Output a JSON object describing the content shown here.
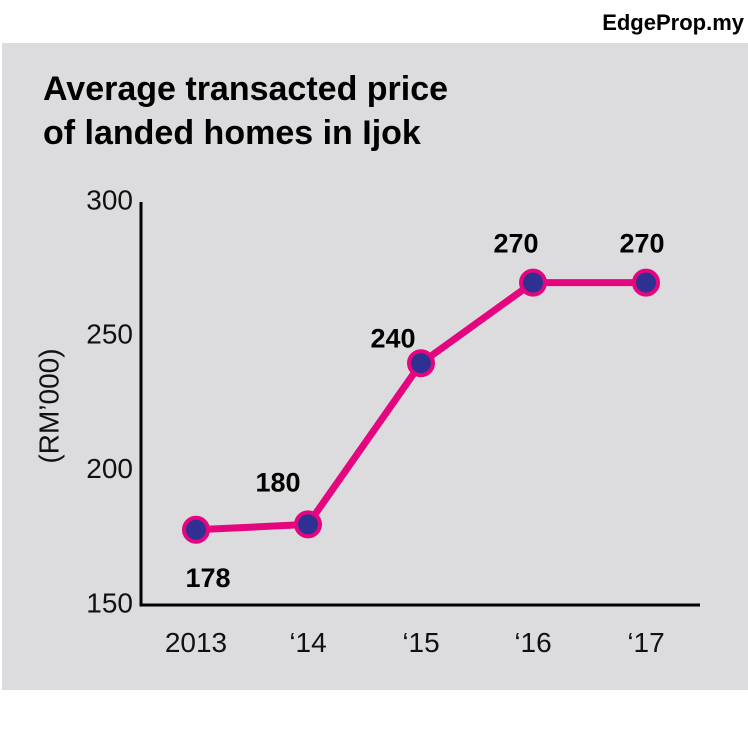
{
  "brand": "EdgeProp.my",
  "chart_data": {
    "type": "line",
    "title_lines": [
      "Average transacted price",
      "of landed homes in Ijok"
    ],
    "ylabel": "(RM’000)",
    "xlabel": "",
    "categories": [
      "2013",
      "‘14",
      "‘15",
      "‘16",
      "‘17"
    ],
    "values": [
      178,
      180,
      240,
      270,
      270
    ],
    "data_labels": [
      "178",
      "180",
      "240",
      "270",
      "270"
    ],
    "ylim": [
      150,
      300
    ],
    "yticks": [
      150,
      200,
      250,
      300
    ],
    "ytick_labels": [
      "150",
      "200",
      "250",
      "300"
    ],
    "grid": false,
    "colors": {
      "line": "#e5067f",
      "marker": "#2e3192",
      "panel": "#dcdcde"
    }
  }
}
